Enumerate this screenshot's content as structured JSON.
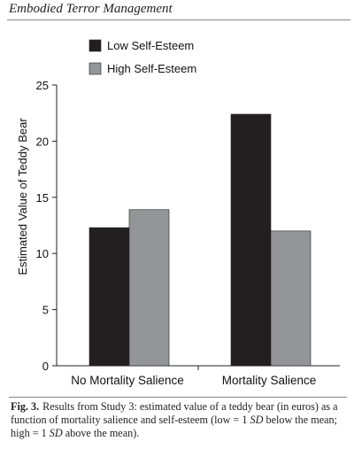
{
  "header": {
    "running_title": "Embodied Terror Management"
  },
  "chart_data": {
    "type": "bar",
    "categories": [
      "No Mortality Salience",
      "Mortality Salience"
    ],
    "series": [
      {
        "name": "Low Self-Esteem",
        "values": [
          12.3,
          22.4
        ],
        "color": "#231f20"
      },
      {
        "name": "High Self-Esteem",
        "values": [
          13.9,
          12.0
        ],
        "color": "#939598"
      }
    ],
    "ylabel": "Estimated Value of Teddy Bear",
    "xlabel": "",
    "ylim": [
      0,
      25
    ],
    "yticks": [
      0,
      5,
      10,
      15,
      20,
      25
    ],
    "legend_position": "top-left",
    "grid": false
  },
  "caption": {
    "label": "Fig. 3.",
    "text_part1": "Results from Study 3: estimated value of a teddy bear (in euros) as a function of mortality salience and self-esteem (low = 1 ",
    "sd1": "SD",
    "text_part2": " below the mean; high = 1 ",
    "sd2": "SD",
    "text_part3": " above the mean)."
  }
}
